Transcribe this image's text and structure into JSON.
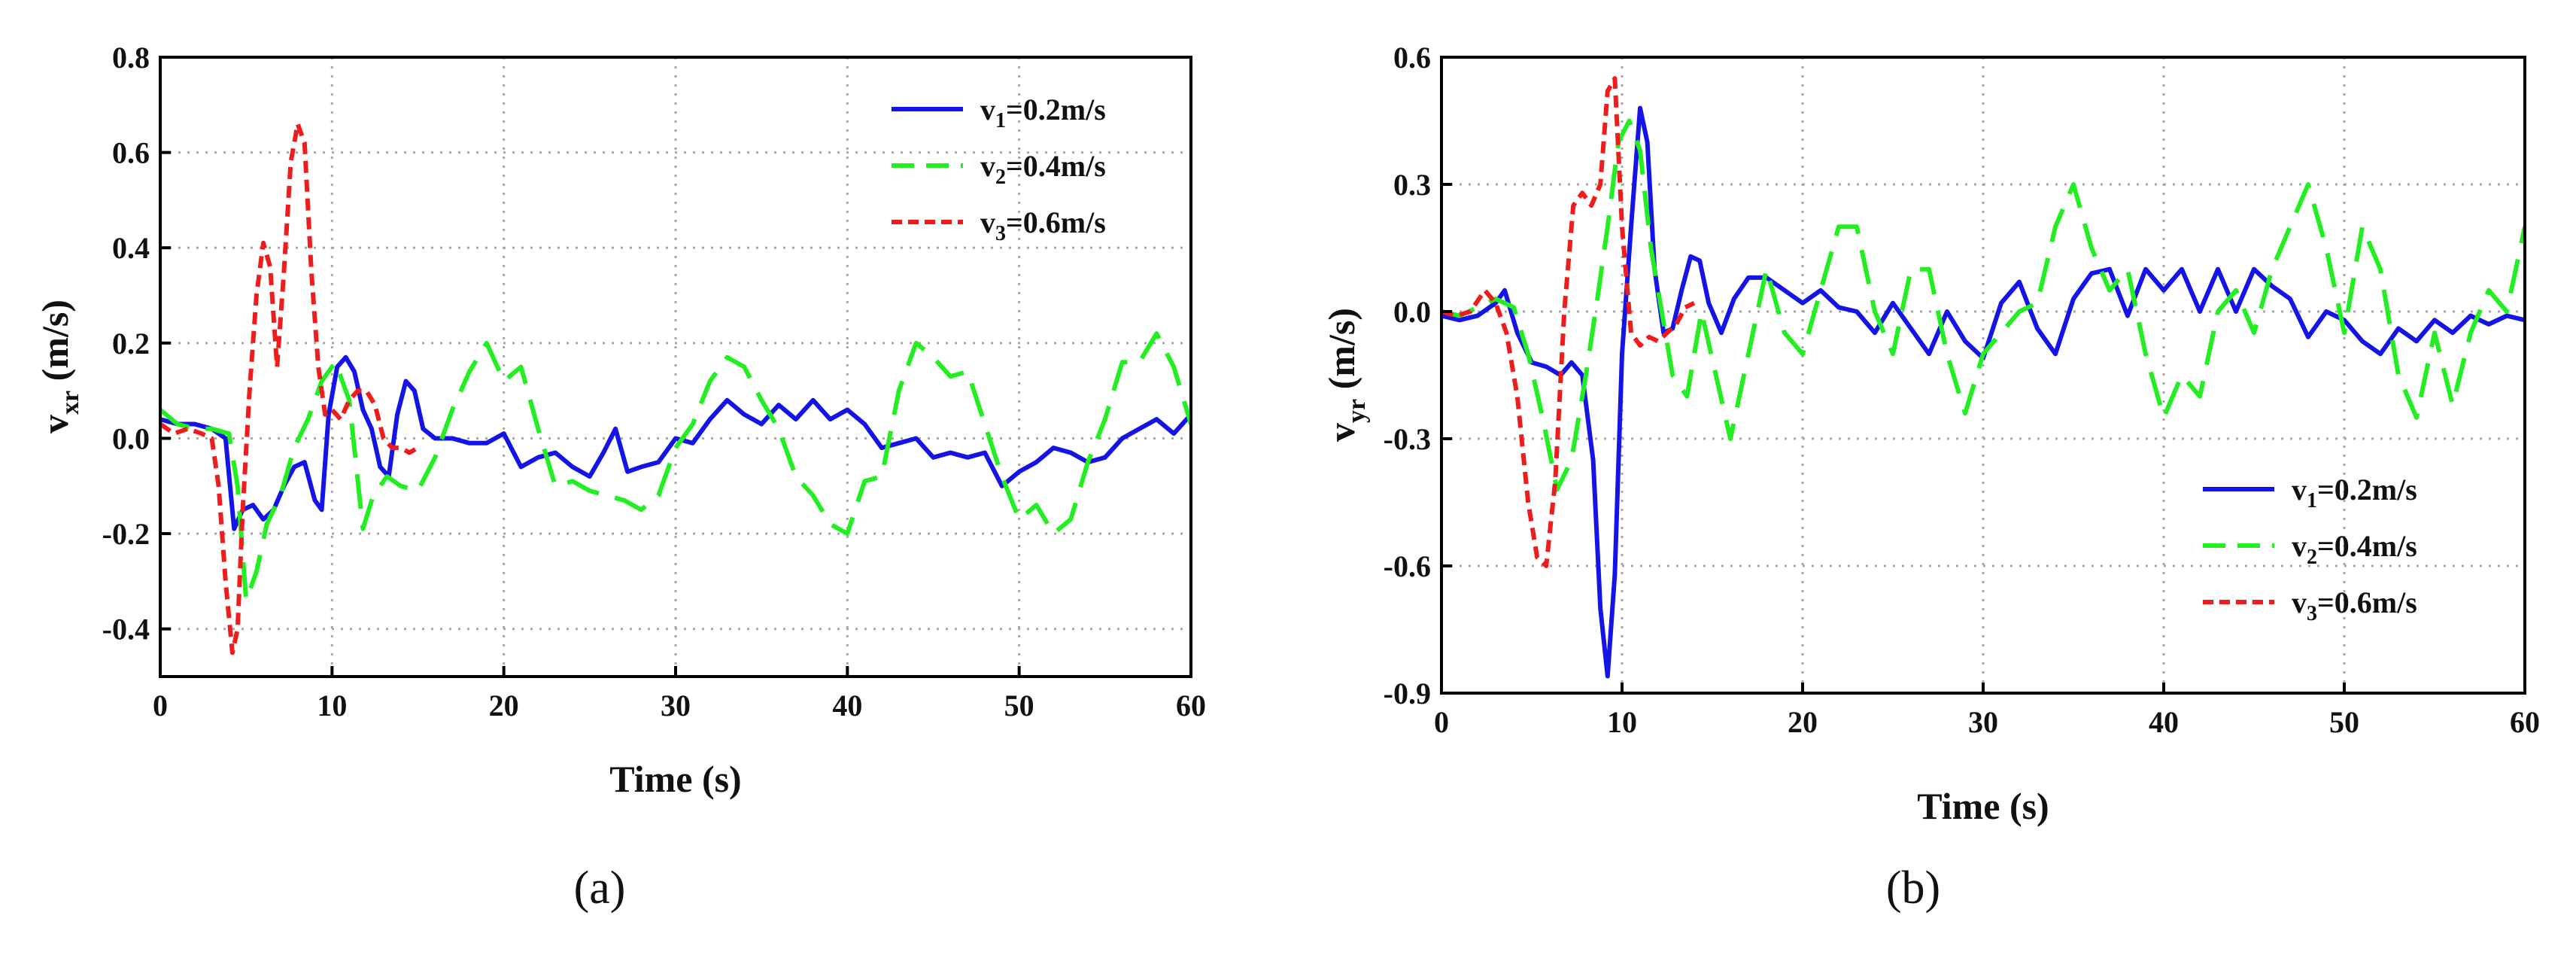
{
  "colors": {
    "v1": "#1414e6",
    "v2": "#22ee22",
    "v3": "#ee1c1c",
    "grid": "#a8a8a8",
    "axis": "#000000"
  },
  "chart_data": [
    {
      "type": "line",
      "panel_label": "(a)",
      "ylabel_main": "v",
      "ylabel_sub": "xr",
      "ylabel_unit": " (m/s)",
      "xlabel": "Time (s)",
      "xlim": [
        0,
        60
      ],
      "ylim": [
        -0.5,
        0.8
      ],
      "xticks": [
        0,
        10,
        20,
        30,
        40,
        50,
        60
      ],
      "xtick_labels": [
        "0",
        "10",
        "20",
        "30",
        "40",
        "50",
        "60"
      ],
      "yticks": [
        -0.4,
        -0.2,
        0.0,
        0.2,
        0.4,
        0.6,
        0.8
      ],
      "ytick_labels": [
        "-0.4",
        "-0.2",
        "0.0",
        "0.2",
        "0.4",
        "0.6",
        "0.8"
      ],
      "grid": true,
      "legend_position": "top-right",
      "series": [
        {
          "name_main": "v",
          "name_sub": "1",
          "name_rest": "=0.2m/s",
          "color_key": "v1",
          "style": "solid",
          "x": [
            0,
            1,
            2,
            3,
            3.8,
            4.3,
            4.8,
            5.4,
            6,
            6.6,
            7.2,
            7.8,
            8.4,
            9,
            9.4,
            9.8,
            10.3,
            10.8,
            11.3,
            11.8,
            12.3,
            12.8,
            13.3,
            13.8,
            14.3,
            14.8,
            15.3,
            16,
            17,
            18,
            19,
            20,
            21,
            22,
            23,
            24,
            25,
            25.8,
            26.5,
            27.2,
            28,
            29,
            30,
            31,
            32,
            33,
            34,
            35,
            36,
            37,
            38,
            39,
            40,
            41,
            42,
            43,
            44,
            45,
            46,
            47,
            48,
            49,
            50,
            51,
            52,
            53,
            54,
            55,
            56,
            57,
            58,
            59,
            60
          ],
          "y": [
            0.04,
            0.03,
            0.03,
            0.02,
            0.0,
            -0.19,
            -0.15,
            -0.14,
            -0.17,
            -0.15,
            -0.1,
            -0.06,
            -0.05,
            -0.13,
            -0.15,
            0.05,
            0.15,
            0.17,
            0.14,
            0.06,
            0.02,
            -0.06,
            -0.08,
            0.05,
            0.12,
            0.1,
            0.02,
            0.0,
            0.0,
            -0.01,
            -0.01,
            0.01,
            -0.06,
            -0.04,
            -0.03,
            -0.06,
            -0.08,
            -0.03,
            0.02,
            -0.07,
            -0.06,
            -0.05,
            0.0,
            -0.01,
            0.04,
            0.08,
            0.05,
            0.03,
            0.07,
            0.04,
            0.08,
            0.04,
            0.06,
            0.03,
            -0.02,
            -0.01,
            0.0,
            -0.04,
            -0.03,
            -0.04,
            -0.03,
            -0.1,
            -0.07,
            -0.05,
            -0.02,
            -0.03,
            -0.05,
            -0.04,
            0.0,
            0.02,
            0.04,
            0.01,
            0.05
          ]
        },
        {
          "name_main": "v",
          "name_sub": "2",
          "name_rest": "=0.4m/s",
          "color_key": "v2",
          "style": "long-dash",
          "x": [
            0,
            1,
            2,
            3,
            4,
            4.5,
            5,
            5.6,
            6.2,
            7,
            7.8,
            8.6,
            9.4,
            10.2,
            11,
            11.8,
            12.4,
            13.2,
            14,
            15,
            16,
            17,
            18,
            19,
            20,
            21,
            22,
            23,
            24,
            25,
            26,
            27,
            28,
            29,
            30,
            31,
            32,
            33,
            34,
            35,
            36,
            37,
            38,
            39,
            40,
            41,
            42,
            43,
            44,
            45,
            46,
            47,
            48,
            49,
            50,
            51,
            52,
            53,
            54,
            55,
            56,
            57,
            58,
            59,
            60
          ],
          "y": [
            0.06,
            0.03,
            0.02,
            0.02,
            0.01,
            -0.1,
            -0.34,
            -0.28,
            -0.18,
            -0.12,
            -0.02,
            0.04,
            0.12,
            0.16,
            0.08,
            -0.19,
            -0.12,
            -0.08,
            -0.1,
            -0.11,
            -0.04,
            0.06,
            0.14,
            0.2,
            0.12,
            0.15,
            0.02,
            -0.1,
            -0.09,
            -0.11,
            -0.12,
            -0.13,
            -0.15,
            -0.12,
            -0.02,
            0.03,
            0.12,
            0.17,
            0.15,
            0.08,
            0.02,
            -0.08,
            -0.12,
            -0.18,
            -0.2,
            -0.09,
            -0.08,
            0.1,
            0.2,
            0.17,
            0.13,
            0.14,
            0.03,
            -0.08,
            -0.17,
            -0.14,
            -0.2,
            -0.17,
            -0.05,
            0.04,
            0.16,
            0.16,
            0.22,
            0.15,
            0.03
          ]
        },
        {
          "name_main": "v",
          "name_sub": "3",
          "name_rest": "=0.6m/s",
          "color_key": "v3",
          "style": "short-dash",
          "x": [
            0,
            0.8,
            1.6,
            2.4,
            3,
            3.4,
            3.8,
            4.2,
            4.5,
            4.8,
            5.2,
            5.6,
            6,
            6.4,
            6.8,
            7.2,
            7.6,
            8,
            8.4,
            8.8,
            9.2,
            9.6,
            10,
            10.5,
            11,
            11.5,
            12,
            12.5,
            13,
            13.5,
            14,
            14.5,
            15
          ],
          "y": [
            0.03,
            0.01,
            0.02,
            0.01,
            0.0,
            -0.1,
            -0.3,
            -0.45,
            -0.4,
            -0.15,
            0.1,
            0.3,
            0.41,
            0.36,
            0.15,
            0.35,
            0.58,
            0.66,
            0.62,
            0.35,
            0.15,
            0.05,
            0.06,
            0.04,
            0.08,
            0.1,
            0.1,
            0.07,
            0.0,
            -0.02,
            -0.02,
            -0.03,
            -0.02
          ]
        }
      ]
    },
    {
      "type": "line",
      "panel_label": "(b)",
      "ylabel_main": "v",
      "ylabel_sub": "yr",
      "ylabel_unit": " (m/s)",
      "xlabel": "Time (s)",
      "xlim": [
        0,
        60
      ],
      "ylim": [
        -0.9,
        0.6
      ],
      "xticks": [
        0,
        10,
        20,
        30,
        40,
        50,
        60
      ],
      "xtick_labels": [
        "0",
        "10",
        "20",
        "30",
        "40",
        "50",
        "60"
      ],
      "yticks": [
        -0.9,
        -0.6,
        -0.3,
        0.0,
        0.3,
        0.6
      ],
      "ytick_labels": [
        "-0.9",
        "-0.6",
        "-0.3",
        "0.0",
        "0.3",
        "0.6"
      ],
      "grid": true,
      "legend_position": "bottom-right",
      "series": [
        {
          "name_main": "v",
          "name_sub": "1",
          "name_rest": "=0.2m/s",
          "color_key": "v1",
          "style": "solid",
          "x": [
            0,
            1,
            2,
            3,
            3.5,
            4.2,
            5,
            5.8,
            6.6,
            7.2,
            7.8,
            8.4,
            8.8,
            9.2,
            9.6,
            10,
            10.5,
            11,
            11.4,
            11.8,
            12.3,
            12.8,
            13.3,
            13.8,
            14.3,
            14.8,
            15.5,
            16.2,
            17,
            18,
            19,
            20,
            21,
            22,
            23,
            24,
            25,
            26,
            27,
            28,
            29,
            30,
            31,
            32,
            33,
            34,
            35,
            36,
            37,
            38,
            39,
            40,
            41,
            42,
            43,
            44,
            45,
            46,
            47,
            48,
            49,
            50,
            51,
            52,
            53,
            54,
            55,
            56,
            57,
            58,
            59,
            60
          ],
          "y": [
            -0.01,
            -0.02,
            -0.01,
            0.02,
            0.05,
            -0.05,
            -0.12,
            -0.13,
            -0.15,
            -0.12,
            -0.15,
            -0.35,
            -0.7,
            -0.86,
            -0.62,
            -0.1,
            0.2,
            0.48,
            0.4,
            0.1,
            -0.05,
            -0.04,
            0.05,
            0.13,
            0.12,
            0.02,
            -0.05,
            0.03,
            0.08,
            0.08,
            0.05,
            0.02,
            0.05,
            0.01,
            0.0,
            -0.05,
            0.02,
            -0.04,
            -0.1,
            0.0,
            -0.07,
            -0.11,
            0.02,
            0.07,
            -0.04,
            -0.1,
            0.03,
            0.09,
            0.1,
            -0.01,
            0.1,
            0.05,
            0.1,
            0.0,
            0.1,
            0.0,
            0.1,
            0.06,
            0.03,
            -0.06,
            0.0,
            -0.02,
            -0.07,
            -0.1,
            -0.04,
            -0.07,
            -0.02,
            -0.05,
            -0.01,
            -0.03,
            -0.01,
            -0.02
          ]
        },
        {
          "name_main": "v",
          "name_sub": "2",
          "name_rest": "=0.4m/s",
          "color_key": "v2",
          "style": "long-dash",
          "x": [
            0,
            1,
            2,
            3,
            4,
            4.8,
            5.6,
            6.4,
            7.2,
            8,
            8.6,
            9.2,
            9.8,
            10.4,
            11,
            11.6,
            12.2,
            12.8,
            13.6,
            14.4,
            15.2,
            16,
            17,
            18,
            19,
            20,
            21,
            22,
            23,
            24,
            25,
            26,
            27,
            28,
            29,
            30,
            31,
            32,
            33,
            34,
            35,
            36,
            37,
            38,
            39,
            40,
            41,
            42,
            43,
            44,
            45,
            46,
            47,
            48,
            49,
            50,
            51,
            52,
            53,
            54,
            55,
            56,
            57,
            58,
            59,
            60
          ],
          "y": [
            0.0,
            -0.01,
            0.01,
            0.03,
            0.01,
            -0.1,
            -0.25,
            -0.42,
            -0.35,
            -0.15,
            0.02,
            0.2,
            0.4,
            0.45,
            0.38,
            0.15,
            0.0,
            -0.15,
            -0.2,
            0.0,
            -0.15,
            -0.3,
            -0.1,
            0.1,
            -0.05,
            -0.1,
            0.05,
            0.2,
            0.2,
            0.0,
            -0.1,
            0.1,
            0.1,
            -0.1,
            -0.24,
            -0.1,
            -0.05,
            0.0,
            0.02,
            0.2,
            0.3,
            0.15,
            0.05,
            0.1,
            -0.1,
            -0.25,
            -0.15,
            -0.2,
            0.0,
            0.05,
            -0.05,
            0.1,
            0.2,
            0.3,
            0.15,
            -0.05,
            0.2,
            0.1,
            -0.15,
            -0.25,
            -0.05,
            -0.22,
            -0.05,
            0.05,
            0.0,
            0.2
          ]
        },
        {
          "name_main": "v",
          "name_sub": "3",
          "name_rest": "=0.6m/s",
          "color_key": "v3",
          "style": "short-dash",
          "x": [
            0,
            0.8,
            1.6,
            2.4,
            3,
            3.6,
            4.2,
            4.8,
            5.3,
            5.8,
            6.3,
            6.8,
            7.3,
            7.8,
            8.3,
            8.8,
            9.2,
            9.6,
            10,
            10.5,
            11,
            11.5,
            12,
            12.5,
            13,
            13.5,
            14
          ],
          "y": [
            0.0,
            -0.01,
            0.0,
            0.05,
            0.02,
            -0.05,
            -0.2,
            -0.45,
            -0.58,
            -0.6,
            -0.4,
            0.0,
            0.25,
            0.28,
            0.25,
            0.3,
            0.52,
            0.55,
            0.2,
            -0.05,
            -0.08,
            -0.06,
            -0.07,
            -0.05,
            -0.03,
            0.01,
            0.02
          ]
        }
      ]
    }
  ]
}
